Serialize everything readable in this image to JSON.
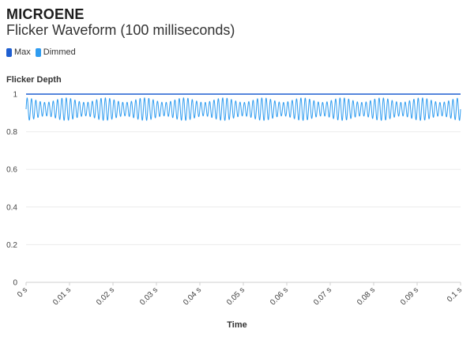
{
  "brand": "MICROENE",
  "chart_data": {
    "type": "line",
    "title": "Flicker Waveform (100 milliseconds)",
    "xlabel": "Time",
    "ylabel": "Flicker Depth",
    "xlim": [
      0,
      0.1
    ],
    "ylim": [
      0,
      1
    ],
    "x_ticks": [
      0,
      0.01,
      0.02,
      0.03,
      0.04,
      0.05,
      0.06,
      0.07,
      0.08,
      0.09,
      0.1
    ],
    "x_tick_labels": [
      "0 s",
      "0.01 s",
      "0.02 s",
      "0.03 s",
      "0.04 s",
      "0.05 s",
      "0.06 s",
      "0.07 s",
      "0.08 s",
      "0.09 s",
      "0.1 s"
    ],
    "y_ticks": [
      0,
      0.2,
      0.4,
      0.6,
      0.8,
      1
    ],
    "y_tick_labels": [
      "0",
      "0.2",
      "0.4",
      "0.6",
      "0.8",
      "1"
    ],
    "grid": true,
    "legend_position": "top-left",
    "series": [
      {
        "name": "Max",
        "color": "#1f5fd1",
        "points": [
          [
            0,
            1
          ],
          [
            0.1,
            1
          ]
        ]
      },
      {
        "name": "Dimmed",
        "color": "#2f9cf0",
        "oscillation": {
          "mean": 0.92,
          "min": 0.86,
          "max": 0.98,
          "frequency_hz": 1000,
          "beat_hz": 110,
          "beat_amplitude": 0.2
        }
      }
    ]
  }
}
